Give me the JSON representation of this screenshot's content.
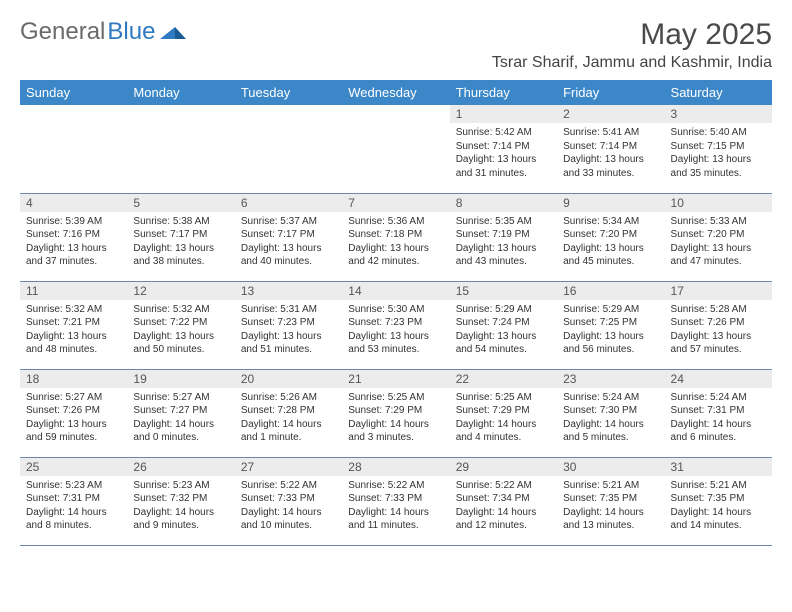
{
  "brand": {
    "part1": "General",
    "part2": "Blue"
  },
  "title": "May 2025",
  "subtitle": "Tsrar Sharif, Jammu and Kashmir, India",
  "colors": {
    "header_bg": "#3b87c8",
    "header_text": "#ffffff",
    "daynum_bg": "#ececec",
    "border": "#6f87a7",
    "brand_gray": "#6a6a6a",
    "brand_blue": "#2f7ac0"
  },
  "day_headers": [
    "Sunday",
    "Monday",
    "Tuesday",
    "Wednesday",
    "Thursday",
    "Friday",
    "Saturday"
  ],
  "weeks": [
    [
      {
        "empty": true
      },
      {
        "empty": true
      },
      {
        "empty": true
      },
      {
        "empty": true
      },
      {
        "n": "1",
        "sunrise": "Sunrise: 5:42 AM",
        "sunset": "Sunset: 7:14 PM",
        "day1": "Daylight: 13 hours",
        "day2": "and 31 minutes."
      },
      {
        "n": "2",
        "sunrise": "Sunrise: 5:41 AM",
        "sunset": "Sunset: 7:14 PM",
        "day1": "Daylight: 13 hours",
        "day2": "and 33 minutes."
      },
      {
        "n": "3",
        "sunrise": "Sunrise: 5:40 AM",
        "sunset": "Sunset: 7:15 PM",
        "day1": "Daylight: 13 hours",
        "day2": "and 35 minutes."
      }
    ],
    [
      {
        "n": "4",
        "sunrise": "Sunrise: 5:39 AM",
        "sunset": "Sunset: 7:16 PM",
        "day1": "Daylight: 13 hours",
        "day2": "and 37 minutes."
      },
      {
        "n": "5",
        "sunrise": "Sunrise: 5:38 AM",
        "sunset": "Sunset: 7:17 PM",
        "day1": "Daylight: 13 hours",
        "day2": "and 38 minutes."
      },
      {
        "n": "6",
        "sunrise": "Sunrise: 5:37 AM",
        "sunset": "Sunset: 7:17 PM",
        "day1": "Daylight: 13 hours",
        "day2": "and 40 minutes."
      },
      {
        "n": "7",
        "sunrise": "Sunrise: 5:36 AM",
        "sunset": "Sunset: 7:18 PM",
        "day1": "Daylight: 13 hours",
        "day2": "and 42 minutes."
      },
      {
        "n": "8",
        "sunrise": "Sunrise: 5:35 AM",
        "sunset": "Sunset: 7:19 PM",
        "day1": "Daylight: 13 hours",
        "day2": "and 43 minutes."
      },
      {
        "n": "9",
        "sunrise": "Sunrise: 5:34 AM",
        "sunset": "Sunset: 7:20 PM",
        "day1": "Daylight: 13 hours",
        "day2": "and 45 minutes."
      },
      {
        "n": "10",
        "sunrise": "Sunrise: 5:33 AM",
        "sunset": "Sunset: 7:20 PM",
        "day1": "Daylight: 13 hours",
        "day2": "and 47 minutes."
      }
    ],
    [
      {
        "n": "11",
        "sunrise": "Sunrise: 5:32 AM",
        "sunset": "Sunset: 7:21 PM",
        "day1": "Daylight: 13 hours",
        "day2": "and 48 minutes."
      },
      {
        "n": "12",
        "sunrise": "Sunrise: 5:32 AM",
        "sunset": "Sunset: 7:22 PM",
        "day1": "Daylight: 13 hours",
        "day2": "and 50 minutes."
      },
      {
        "n": "13",
        "sunrise": "Sunrise: 5:31 AM",
        "sunset": "Sunset: 7:23 PM",
        "day1": "Daylight: 13 hours",
        "day2": "and 51 minutes."
      },
      {
        "n": "14",
        "sunrise": "Sunrise: 5:30 AM",
        "sunset": "Sunset: 7:23 PM",
        "day1": "Daylight: 13 hours",
        "day2": "and 53 minutes."
      },
      {
        "n": "15",
        "sunrise": "Sunrise: 5:29 AM",
        "sunset": "Sunset: 7:24 PM",
        "day1": "Daylight: 13 hours",
        "day2": "and 54 minutes."
      },
      {
        "n": "16",
        "sunrise": "Sunrise: 5:29 AM",
        "sunset": "Sunset: 7:25 PM",
        "day1": "Daylight: 13 hours",
        "day2": "and 56 minutes."
      },
      {
        "n": "17",
        "sunrise": "Sunrise: 5:28 AM",
        "sunset": "Sunset: 7:26 PM",
        "day1": "Daylight: 13 hours",
        "day2": "and 57 minutes."
      }
    ],
    [
      {
        "n": "18",
        "sunrise": "Sunrise: 5:27 AM",
        "sunset": "Sunset: 7:26 PM",
        "day1": "Daylight: 13 hours",
        "day2": "and 59 minutes."
      },
      {
        "n": "19",
        "sunrise": "Sunrise: 5:27 AM",
        "sunset": "Sunset: 7:27 PM",
        "day1": "Daylight: 14 hours",
        "day2": "and 0 minutes."
      },
      {
        "n": "20",
        "sunrise": "Sunrise: 5:26 AM",
        "sunset": "Sunset: 7:28 PM",
        "day1": "Daylight: 14 hours",
        "day2": "and 1 minute."
      },
      {
        "n": "21",
        "sunrise": "Sunrise: 5:25 AM",
        "sunset": "Sunset: 7:29 PM",
        "day1": "Daylight: 14 hours",
        "day2": "and 3 minutes."
      },
      {
        "n": "22",
        "sunrise": "Sunrise: 5:25 AM",
        "sunset": "Sunset: 7:29 PM",
        "day1": "Daylight: 14 hours",
        "day2": "and 4 minutes."
      },
      {
        "n": "23",
        "sunrise": "Sunrise: 5:24 AM",
        "sunset": "Sunset: 7:30 PM",
        "day1": "Daylight: 14 hours",
        "day2": "and 5 minutes."
      },
      {
        "n": "24",
        "sunrise": "Sunrise: 5:24 AM",
        "sunset": "Sunset: 7:31 PM",
        "day1": "Daylight: 14 hours",
        "day2": "and 6 minutes."
      }
    ],
    [
      {
        "n": "25",
        "sunrise": "Sunrise: 5:23 AM",
        "sunset": "Sunset: 7:31 PM",
        "day1": "Daylight: 14 hours",
        "day2": "and 8 minutes."
      },
      {
        "n": "26",
        "sunrise": "Sunrise: 5:23 AM",
        "sunset": "Sunset: 7:32 PM",
        "day1": "Daylight: 14 hours",
        "day2": "and 9 minutes."
      },
      {
        "n": "27",
        "sunrise": "Sunrise: 5:22 AM",
        "sunset": "Sunset: 7:33 PM",
        "day1": "Daylight: 14 hours",
        "day2": "and 10 minutes."
      },
      {
        "n": "28",
        "sunrise": "Sunrise: 5:22 AM",
        "sunset": "Sunset: 7:33 PM",
        "day1": "Daylight: 14 hours",
        "day2": "and 11 minutes."
      },
      {
        "n": "29",
        "sunrise": "Sunrise: 5:22 AM",
        "sunset": "Sunset: 7:34 PM",
        "day1": "Daylight: 14 hours",
        "day2": "and 12 minutes."
      },
      {
        "n": "30",
        "sunrise": "Sunrise: 5:21 AM",
        "sunset": "Sunset: 7:35 PM",
        "day1": "Daylight: 14 hours",
        "day2": "and 13 minutes."
      },
      {
        "n": "31",
        "sunrise": "Sunrise: 5:21 AM",
        "sunset": "Sunset: 7:35 PM",
        "day1": "Daylight: 14 hours",
        "day2": "and 14 minutes."
      }
    ]
  ]
}
